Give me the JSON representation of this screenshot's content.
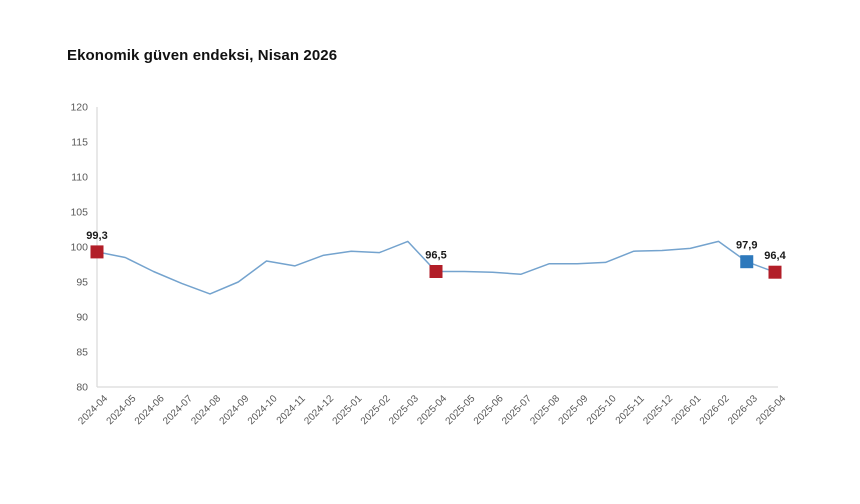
{
  "title": "Ekonomik güven endeksi, Nisan 2026",
  "chart_data": {
    "type": "line",
    "title": "Ekonomik güven endeksi, Nisan 2026",
    "categories": [
      "2024-04",
      "2024-05",
      "2024-06",
      "2024-07",
      "2024-08",
      "2024-09",
      "2024-10",
      "2024-11",
      "2024-12",
      "2025-01",
      "2025-02",
      "2025-03",
      "2025-04",
      "2025-05",
      "2025-06",
      "2025-07",
      "2025-08",
      "2025-09",
      "2025-10",
      "2025-11",
      "2025-12",
      "2026-01",
      "2026-02",
      "2026-03",
      "2026-04"
    ],
    "values": [
      99.3,
      98.5,
      96.5,
      94.8,
      93.3,
      95.0,
      98.0,
      97.3,
      98.8,
      99.4,
      99.2,
      100.8,
      96.5,
      96.5,
      96.4,
      96.1,
      97.6,
      97.6,
      97.8,
      99.4,
      99.5,
      99.8,
      100.8,
      97.9,
      96.4
    ],
    "xlabel": "",
    "ylabel": "",
    "ylim": [
      80,
      120
    ],
    "yticks": [
      80,
      85,
      90,
      95,
      100,
      105,
      110,
      115,
      120
    ],
    "grid": false,
    "legend": "none",
    "x_label_rotation": -45,
    "line_color": "#74A3CE",
    "axis_color": "#D9D9D9",
    "tick_label_color": "#595959",
    "data_label_color": "#1A1A1A",
    "annotations": [
      {
        "index": 0,
        "label": "99,3",
        "marker_color": "#B21E28",
        "marker": "square"
      },
      {
        "index": 12,
        "label": "96,5",
        "marker_color": "#B21E28",
        "marker": "square"
      },
      {
        "index": 23,
        "label": "97,9",
        "marker_color": "#2E79BC",
        "marker": "square"
      },
      {
        "index": 24,
        "label": "96,4",
        "marker_color": "#B21E28",
        "marker": "square"
      }
    ]
  }
}
